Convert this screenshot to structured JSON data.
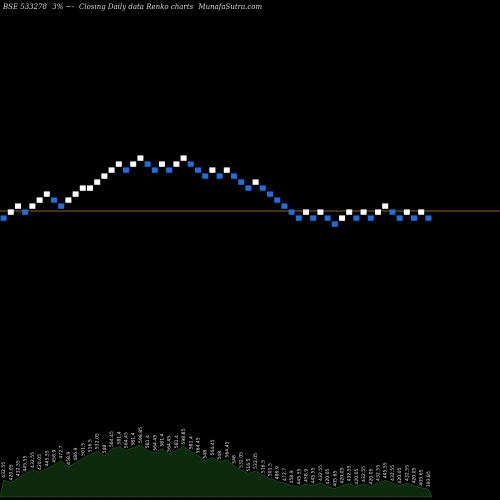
{
  "header": {
    "symbol": "BSE 533278",
    "percent": "3%",
    "arrows": "~-",
    "description": "Closing Daily data Renko charts",
    "site": "MunafaSutra.com"
  },
  "colors": {
    "background": "#000000",
    "up_brick": "#ffffff",
    "down_brick": "#1e6fdc",
    "reference_line": "#b8860b",
    "volume_fill": "#0b2a0b",
    "volume_edge": "#2e7d32"
  },
  "chart_data": {
    "type": "renko",
    "brick_percent": 3,
    "reference_value": 405.65,
    "bricks": [
      {
        "dir": "down",
        "level": 0
      },
      {
        "dir": "up",
        "level": 1
      },
      {
        "dir": "up",
        "level": 2
      },
      {
        "dir": "down",
        "level": 1
      },
      {
        "dir": "up",
        "level": 2
      },
      {
        "dir": "up",
        "level": 3
      },
      {
        "dir": "up",
        "level": 4
      },
      {
        "dir": "down",
        "level": 3
      },
      {
        "dir": "down",
        "level": 2
      },
      {
        "dir": "up",
        "level": 3
      },
      {
        "dir": "up",
        "level": 4
      },
      {
        "dir": "up",
        "level": 5
      },
      {
        "dir": "up",
        "level": 5
      },
      {
        "dir": "up",
        "level": 6
      },
      {
        "dir": "up",
        "level": 7
      },
      {
        "dir": "up",
        "level": 8
      },
      {
        "dir": "up",
        "level": 9
      },
      {
        "dir": "down",
        "level": 8
      },
      {
        "dir": "up",
        "level": 9
      },
      {
        "dir": "up",
        "level": 10
      },
      {
        "dir": "down",
        "level": 9
      },
      {
        "dir": "down",
        "level": 8
      },
      {
        "dir": "up",
        "level": 9
      },
      {
        "dir": "down",
        "level": 8
      },
      {
        "dir": "up",
        "level": 9
      },
      {
        "dir": "up",
        "level": 10
      },
      {
        "dir": "down",
        "level": 9
      },
      {
        "dir": "down",
        "level": 8
      },
      {
        "dir": "down",
        "level": 7
      },
      {
        "dir": "up",
        "level": 8
      },
      {
        "dir": "down",
        "level": 7
      },
      {
        "dir": "up",
        "level": 8
      },
      {
        "dir": "down",
        "level": 7
      },
      {
        "dir": "down",
        "level": 6
      },
      {
        "dir": "down",
        "level": 5
      },
      {
        "dir": "up",
        "level": 6
      },
      {
        "dir": "down",
        "level": 5
      },
      {
        "dir": "down",
        "level": 4
      },
      {
        "dir": "down",
        "level": 3
      },
      {
        "dir": "down",
        "level": 2
      },
      {
        "dir": "down",
        "level": 1
      },
      {
        "dir": "down",
        "level": 0
      },
      {
        "dir": "up",
        "level": 1
      },
      {
        "dir": "down",
        "level": 0
      },
      {
        "dir": "up",
        "level": 1
      },
      {
        "dir": "down",
        "level": 0
      },
      {
        "dir": "down",
        "level": -1
      },
      {
        "dir": "up",
        "level": 0
      },
      {
        "dir": "up",
        "level": 1
      },
      {
        "dir": "down",
        "level": 0
      },
      {
        "dir": "up",
        "level": 1
      },
      {
        "dir": "down",
        "level": 0
      },
      {
        "dir": "up",
        "level": 1
      },
      {
        "dir": "up",
        "level": 2
      },
      {
        "dir": "down",
        "level": 1
      },
      {
        "dir": "down",
        "level": 0
      },
      {
        "dir": "up",
        "level": 1
      },
      {
        "dir": "down",
        "level": 0
      },
      {
        "dir": "up",
        "level": 1
      },
      {
        "dir": "down",
        "level": 0
      }
    ],
    "tick_labels": [
      "432.55",
      "420.05",
      "432.55",
      "445.55",
      "432.55",
      "420.05",
      "445.55",
      "458.9",
      "472.7",
      "458.9",
      "486.9",
      "501.5",
      "516.5",
      "532.05",
      "548",
      "564.45",
      "581.4",
      "564.45",
      "581.4",
      "598.85",
      "581.4",
      "564.45",
      "581.4",
      "564.45",
      "581.4",
      "598.85",
      "581.4",
      "564.45",
      "548",
      "564.45",
      "548",
      "564.45",
      "548",
      "532.05",
      "516.5",
      "532.05",
      "516.5",
      "501.5",
      "486.9",
      "472.7",
      "458.9",
      "445.55",
      "458.9",
      "445.55",
      "432.55",
      "420.05",
      "405.65",
      "420.05",
      "432.55",
      "420.05",
      "432.55",
      "420.05",
      "432.55",
      "445.55",
      "432.55",
      "420.05",
      "432.55",
      "420.05",
      "405.65",
      "393.85"
    ],
    "volume": [
      0.33,
      0.28,
      0.36,
      0.45,
      0.52,
      0.48,
      0.55,
      0.62,
      0.7,
      0.58,
      0.66,
      0.75,
      0.82,
      0.88,
      0.8,
      0.92,
      0.97,
      0.9,
      0.95,
      1.0,
      0.9,
      0.85,
      0.93,
      0.83,
      0.9,
      0.97,
      0.88,
      0.8,
      0.7,
      0.76,
      0.68,
      0.72,
      0.6,
      0.52,
      0.45,
      0.5,
      0.42,
      0.36,
      0.3,
      0.27,
      0.22,
      0.2,
      0.25,
      0.22,
      0.27,
      0.2,
      0.16,
      0.22,
      0.26,
      0.2,
      0.25,
      0.2,
      0.27,
      0.32,
      0.27,
      0.22,
      0.27,
      0.22,
      0.18,
      0.15
    ]
  }
}
